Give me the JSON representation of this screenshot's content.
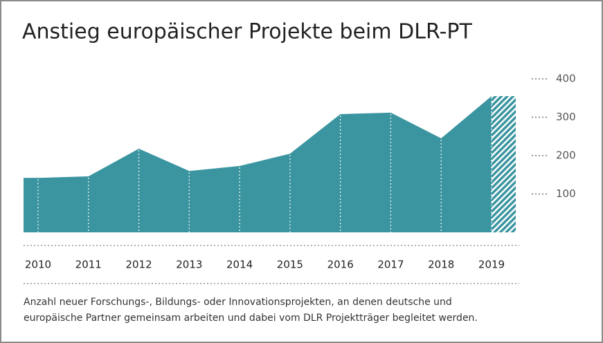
{
  "chart_data": {
    "type": "area",
    "title": "Anstieg europäischer Projekte beim DLR-PT",
    "categories": [
      "2010",
      "2011",
      "2012",
      "2013",
      "2014",
      "2015",
      "2016",
      "2017",
      "2018",
      "2019"
    ],
    "values": [
      142,
      146,
      218,
      160,
      173,
      205,
      308,
      312,
      245,
      355
    ],
    "color": "#3a95a0",
    "ylim": [
      0,
      400
    ],
    "yticks": [
      100,
      200,
      300,
      400
    ],
    "note": [
      "Anzahl neuer Forschungs-, Bildungs- oder Innovationsprojekten, an denen deutsche und",
      "europäische Partner gemeinsam arbeiten und dabei vom DLR Projektträger begleitet werden."
    ]
  }
}
